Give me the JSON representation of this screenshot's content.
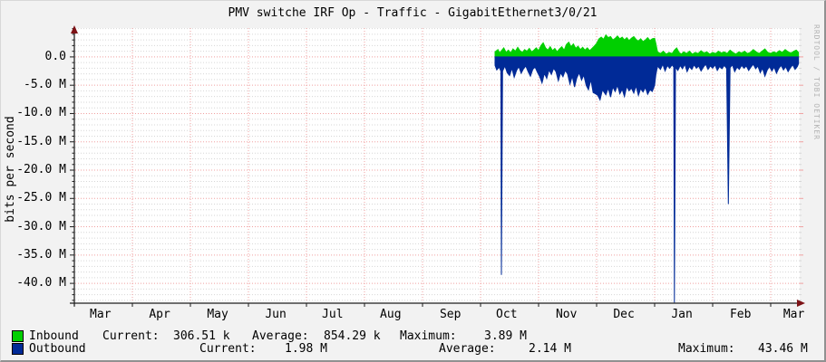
{
  "watermark": "RRDTOOL / TOBI OETIKER",
  "legend": {
    "rows": [
      {
        "name": "Inbound",
        "swatch_color": "#00CF00",
        "cells": [
          "Current:",
          "306.51 k",
          "Average:",
          "854.29 k",
          "Maximum:",
          "3.89 M"
        ]
      },
      {
        "name": "Outbound",
        "swatch_color": "#002A97",
        "cells": [
          "Current:",
          "1.98 M",
          "Average:",
          "2.14 M",
          "Maximum:",
          "43.46 M"
        ]
      }
    ]
  },
  "chart_data": {
    "type": "area",
    "title": "PMV switche IRF Op - Traffic - GigabitEthernet3/0/21",
    "ylabel": "bits per second",
    "xlabel": "",
    "x_unit": "months since Mar 1 (one-year window, Mar to Mar)",
    "y_unit": "Mbit/s",
    "xlim": [
      0,
      12.5
    ],
    "ylim": [
      -43.5,
      5.1
    ],
    "grid": "on",
    "legend_position": "bottom",
    "y_ticks": [
      {
        "v": 0,
        "label": "0.0"
      },
      {
        "v": -5,
        "label": "-5.0 M"
      },
      {
        "v": -10,
        "label": "-10.0 M"
      },
      {
        "v": -15,
        "label": "-15.0 M"
      },
      {
        "v": -20,
        "label": "-20.0 M"
      },
      {
        "v": -25,
        "label": "-25.0 M"
      },
      {
        "v": -30,
        "label": "-30.0 M"
      },
      {
        "v": -35,
        "label": "-35.0 M"
      },
      {
        "v": -40,
        "label": "-40.0 M"
      }
    ],
    "x_ticks": [
      {
        "m": 0.45,
        "label": "Mar"
      },
      {
        "m": 1.47,
        "label": "Apr"
      },
      {
        "m": 2.47,
        "label": "May"
      },
      {
        "m": 3.47,
        "label": "Jun"
      },
      {
        "m": 4.45,
        "label": "Jul"
      },
      {
        "m": 5.45,
        "label": "Aug"
      },
      {
        "m": 6.48,
        "label": "Sep"
      },
      {
        "m": 7.45,
        "label": "Oct"
      },
      {
        "m": 8.48,
        "label": "Nov"
      },
      {
        "m": 9.47,
        "label": "Dec"
      },
      {
        "m": 10.47,
        "label": "Jan"
      },
      {
        "m": 11.48,
        "label": "Feb"
      },
      {
        "m": 12.4,
        "label": "Mar"
      }
    ],
    "series": [
      {
        "name": "Inbound",
        "color": "#00CF00",
        "points": [
          [
            7.25,
            0.9
          ],
          [
            7.3,
            1.3
          ],
          [
            7.33,
            0.7
          ],
          [
            7.36,
            1.1
          ],
          [
            7.4,
            1.6
          ],
          [
            7.44,
            0.8
          ],
          [
            7.48,
            1.2
          ],
          [
            7.52,
            0.7
          ],
          [
            7.56,
            1.4
          ],
          [
            7.6,
            1.0
          ],
          [
            7.64,
            1.7
          ],
          [
            7.68,
            1.1
          ],
          [
            7.72,
            0.8
          ],
          [
            7.76,
            1.3
          ],
          [
            7.8,
            1.0
          ],
          [
            7.84,
            1.5
          ],
          [
            7.88,
            0.9
          ],
          [
            7.92,
            1.2
          ],
          [
            7.96,
            1.6
          ],
          [
            8.0,
            1.1
          ],
          [
            8.04,
            2.0
          ],
          [
            8.08,
            2.5
          ],
          [
            8.12,
            1.6
          ],
          [
            8.16,
            1.2
          ],
          [
            8.2,
            1.8
          ],
          [
            8.24,
            1.1
          ],
          [
            8.28,
            1.5
          ],
          [
            8.32,
            0.9
          ],
          [
            8.36,
            1.4
          ],
          [
            8.4,
            1.8
          ],
          [
            8.44,
            1.2
          ],
          [
            8.48,
            2.2
          ],
          [
            8.52,
            2.6
          ],
          [
            8.56,
            1.8
          ],
          [
            8.6,
            2.3
          ],
          [
            8.64,
            1.5
          ],
          [
            8.68,
            1.9
          ],
          [
            8.72,
            1.3
          ],
          [
            8.76,
            1.7
          ],
          [
            8.8,
            1.2
          ],
          [
            8.84,
            1.6
          ],
          [
            8.88,
            1.1
          ],
          [
            8.92,
            1.5
          ],
          [
            8.96,
            1.9
          ],
          [
            9.0,
            2.4
          ],
          [
            9.04,
            3.2
          ],
          [
            9.08,
            3.5
          ],
          [
            9.12,
            3.1
          ],
          [
            9.16,
            3.89
          ],
          [
            9.2,
            3.4
          ],
          [
            9.24,
            3.6
          ],
          [
            9.28,
            3.0
          ],
          [
            9.32,
            3.3
          ],
          [
            9.36,
            3.7
          ],
          [
            9.4,
            3.2
          ],
          [
            9.44,
            3.5
          ],
          [
            9.48,
            3.0
          ],
          [
            9.52,
            3.4
          ],
          [
            9.56,
            2.9
          ],
          [
            9.6,
            3.3
          ],
          [
            9.64,
            3.6
          ],
          [
            9.68,
            3.1
          ],
          [
            9.72,
            2.8
          ],
          [
            9.76,
            3.2
          ],
          [
            9.8,
            2.7
          ],
          [
            9.84,
            3.0
          ],
          [
            9.88,
            3.4
          ],
          [
            9.92,
            2.9
          ],
          [
            9.96,
            3.2
          ],
          [
            10.0,
            3.3
          ],
          [
            10.02,
            2.4
          ],
          [
            10.05,
            0.9
          ],
          [
            10.1,
            0.6
          ],
          [
            10.15,
            1.0
          ],
          [
            10.2,
            0.5
          ],
          [
            10.25,
            0.8
          ],
          [
            10.3,
            0.6
          ],
          [
            10.34,
            1.2
          ],
          [
            10.38,
            1.6
          ],
          [
            10.42,
            0.8
          ],
          [
            10.46,
            0.5
          ],
          [
            10.5,
            0.9
          ],
          [
            10.55,
            0.6
          ],
          [
            10.6,
            1.0
          ],
          [
            10.65,
            0.5
          ],
          [
            10.7,
            0.8
          ],
          [
            10.75,
            0.6
          ],
          [
            10.8,
            1.1
          ],
          [
            10.85,
            0.7
          ],
          [
            10.9,
            0.9
          ],
          [
            10.95,
            0.5
          ],
          [
            11.0,
            0.8
          ],
          [
            11.05,
            0.6
          ],
          [
            11.1,
            1.0
          ],
          [
            11.15,
            0.7
          ],
          [
            11.2,
            0.9
          ],
          [
            11.25,
            0.6
          ],
          [
            11.3,
            1.2
          ],
          [
            11.35,
            0.8
          ],
          [
            11.4,
            0.5
          ],
          [
            11.45,
            0.9
          ],
          [
            11.5,
            0.7
          ],
          [
            11.55,
            1.0
          ],
          [
            11.6,
            0.6
          ],
          [
            11.65,
            0.8
          ],
          [
            11.7,
            1.3
          ],
          [
            11.75,
            0.9
          ],
          [
            11.8,
            0.6
          ],
          [
            11.85,
            1.0
          ],
          [
            11.9,
            1.4
          ],
          [
            11.95,
            0.8
          ],
          [
            12.0,
            0.6
          ],
          [
            12.05,
            0.9
          ],
          [
            12.1,
            0.7
          ],
          [
            12.15,
            1.1
          ],
          [
            12.2,
            0.8
          ],
          [
            12.25,
            1.3
          ],
          [
            12.3,
            0.9
          ],
          [
            12.35,
            0.7
          ],
          [
            12.4,
            1.0
          ],
          [
            12.44,
            1.2
          ],
          [
            12.48,
            0.8
          ]
        ]
      },
      {
        "name": "Outbound",
        "color": "#002A97",
        "points": [
          [
            7.25,
            -1.5
          ],
          [
            7.28,
            -2.3
          ],
          [
            7.32,
            -1.8
          ],
          [
            7.35,
            -2.5
          ],
          [
            7.36,
            -38.5
          ],
          [
            7.38,
            -2.5
          ],
          [
            7.42,
            -1.6
          ],
          [
            7.46,
            -2.8
          ],
          [
            7.5,
            -3.3
          ],
          [
            7.54,
            -2.0
          ],
          [
            7.58,
            -3.6
          ],
          [
            7.62,
            -2.4
          ],
          [
            7.66,
            -1.7
          ],
          [
            7.7,
            -2.9
          ],
          [
            7.74,
            -2.1
          ],
          [
            7.78,
            -1.6
          ],
          [
            7.82,
            -2.6
          ],
          [
            7.86,
            -3.4
          ],
          [
            7.9,
            -2.2
          ],
          [
            7.94,
            -1.8
          ],
          [
            7.98,
            -2.7
          ],
          [
            8.02,
            -3.5
          ],
          [
            8.06,
            -4.6
          ],
          [
            8.1,
            -2.9
          ],
          [
            8.14,
            -3.8
          ],
          [
            8.18,
            -2.3
          ],
          [
            8.22,
            -3.1
          ],
          [
            8.26,
            -2.0
          ],
          [
            8.3,
            -2.6
          ],
          [
            8.34,
            -4.2
          ],
          [
            8.38,
            -2.8
          ],
          [
            8.42,
            -3.5
          ],
          [
            8.46,
            -2.4
          ],
          [
            8.5,
            -3.0
          ],
          [
            8.54,
            -4.8
          ],
          [
            8.58,
            -3.4
          ],
          [
            8.62,
            -5.3
          ],
          [
            8.66,
            -3.7
          ],
          [
            8.7,
            -2.8
          ],
          [
            8.74,
            -4.1
          ],
          [
            8.78,
            -3.2
          ],
          [
            8.82,
            -5.0
          ],
          [
            8.86,
            -5.8
          ],
          [
            8.9,
            -4.0
          ],
          [
            8.94,
            -6.3
          ],
          [
            8.98,
            -6.5
          ],
          [
            9.02,
            -6.8
          ],
          [
            9.06,
            -7.6
          ],
          [
            9.1,
            -5.8
          ],
          [
            9.16,
            -6.7
          ],
          [
            9.2,
            -5.5
          ],
          [
            9.24,
            -7.1
          ],
          [
            9.28,
            -5.3
          ],
          [
            9.32,
            -6.1
          ],
          [
            9.36,
            -5.0
          ],
          [
            9.4,
            -6.5
          ],
          [
            9.44,
            -5.7
          ],
          [
            9.48,
            -7.0
          ],
          [
            9.52,
            -5.2
          ],
          [
            9.56,
            -6.0
          ],
          [
            9.6,
            -5.5
          ],
          [
            9.64,
            -6.4
          ],
          [
            9.68,
            -5.1
          ],
          [
            9.72,
            -6.8
          ],
          [
            9.76,
            -5.6
          ],
          [
            9.8,
            -6.2
          ],
          [
            9.84,
            -5.4
          ],
          [
            9.88,
            -6.6
          ],
          [
            9.92,
            -5.8
          ],
          [
            9.96,
            -6.1
          ],
          [
            10.0,
            -5.0
          ],
          [
            10.02,
            -3.2
          ],
          [
            10.05,
            -1.6
          ],
          [
            10.1,
            -2.2
          ],
          [
            10.14,
            -1.3
          ],
          [
            10.18,
            -2.5
          ],
          [
            10.22,
            -1.5
          ],
          [
            10.26,
            -2.0
          ],
          [
            10.3,
            -1.4
          ],
          [
            10.33,
            -1.8
          ],
          [
            10.34,
            -43.4
          ],
          [
            10.36,
            -1.8
          ],
          [
            10.4,
            -2.4
          ],
          [
            10.44,
            -1.5
          ],
          [
            10.48,
            -2.1
          ],
          [
            10.52,
            -1.3
          ],
          [
            10.56,
            -2.6
          ],
          [
            10.6,
            -1.7
          ],
          [
            10.64,
            -2.2
          ],
          [
            10.68,
            -1.4
          ],
          [
            10.72,
            -2.0
          ],
          [
            10.76,
            -1.6
          ],
          [
            10.8,
            -2.5
          ],
          [
            10.84,
            -1.8
          ],
          [
            10.88,
            -1.3
          ],
          [
            10.92,
            -2.2
          ],
          [
            10.96,
            -1.6
          ],
          [
            11.0,
            -2.0
          ],
          [
            11.04,
            -1.4
          ],
          [
            11.08,
            -2.4
          ],
          [
            11.12,
            -1.7
          ],
          [
            11.16,
            -2.1
          ],
          [
            11.2,
            -1.5
          ],
          [
            11.24,
            -2.0
          ],
          [
            11.27,
            -26.0
          ],
          [
            11.3,
            -1.9
          ],
          [
            11.34,
            -1.4
          ],
          [
            11.38,
            -2.6
          ],
          [
            11.42,
            -1.8
          ],
          [
            11.46,
            -2.2
          ],
          [
            11.5,
            -1.5
          ],
          [
            11.54,
            -2.0
          ],
          [
            11.58,
            -1.6
          ],
          [
            11.62,
            -2.4
          ],
          [
            11.66,
            -1.8
          ],
          [
            11.7,
            -1.3
          ],
          [
            11.74,
            -2.1
          ],
          [
            11.78,
            -1.6
          ],
          [
            11.82,
            -2.8
          ],
          [
            11.86,
            -2.0
          ],
          [
            11.9,
            -3.4
          ],
          [
            11.94,
            -2.3
          ],
          [
            11.98,
            -1.7
          ],
          [
            12.02,
            -2.5
          ],
          [
            12.06,
            -1.8
          ],
          [
            12.1,
            -2.9
          ],
          [
            12.14,
            -2.0
          ],
          [
            12.18,
            -1.5
          ],
          [
            12.22,
            -2.3
          ],
          [
            12.26,
            -1.7
          ],
          [
            12.3,
            -2.6
          ],
          [
            12.34,
            -1.9
          ],
          [
            12.38,
            -1.4
          ],
          [
            12.42,
            -2.2
          ],
          [
            12.46,
            -1.7
          ],
          [
            12.48,
            -1.2
          ]
        ]
      }
    ],
    "colors": {
      "plot_background": "#ffffff",
      "outer_background": "#f2f2f2",
      "grid_major": "#f0a0a0",
      "grid_minor": "#d6d6d6",
      "axis": "#1c1c1c",
      "arrow": "#7d1216",
      "inbound": "#00CF00",
      "outbound": "#002A97"
    }
  }
}
